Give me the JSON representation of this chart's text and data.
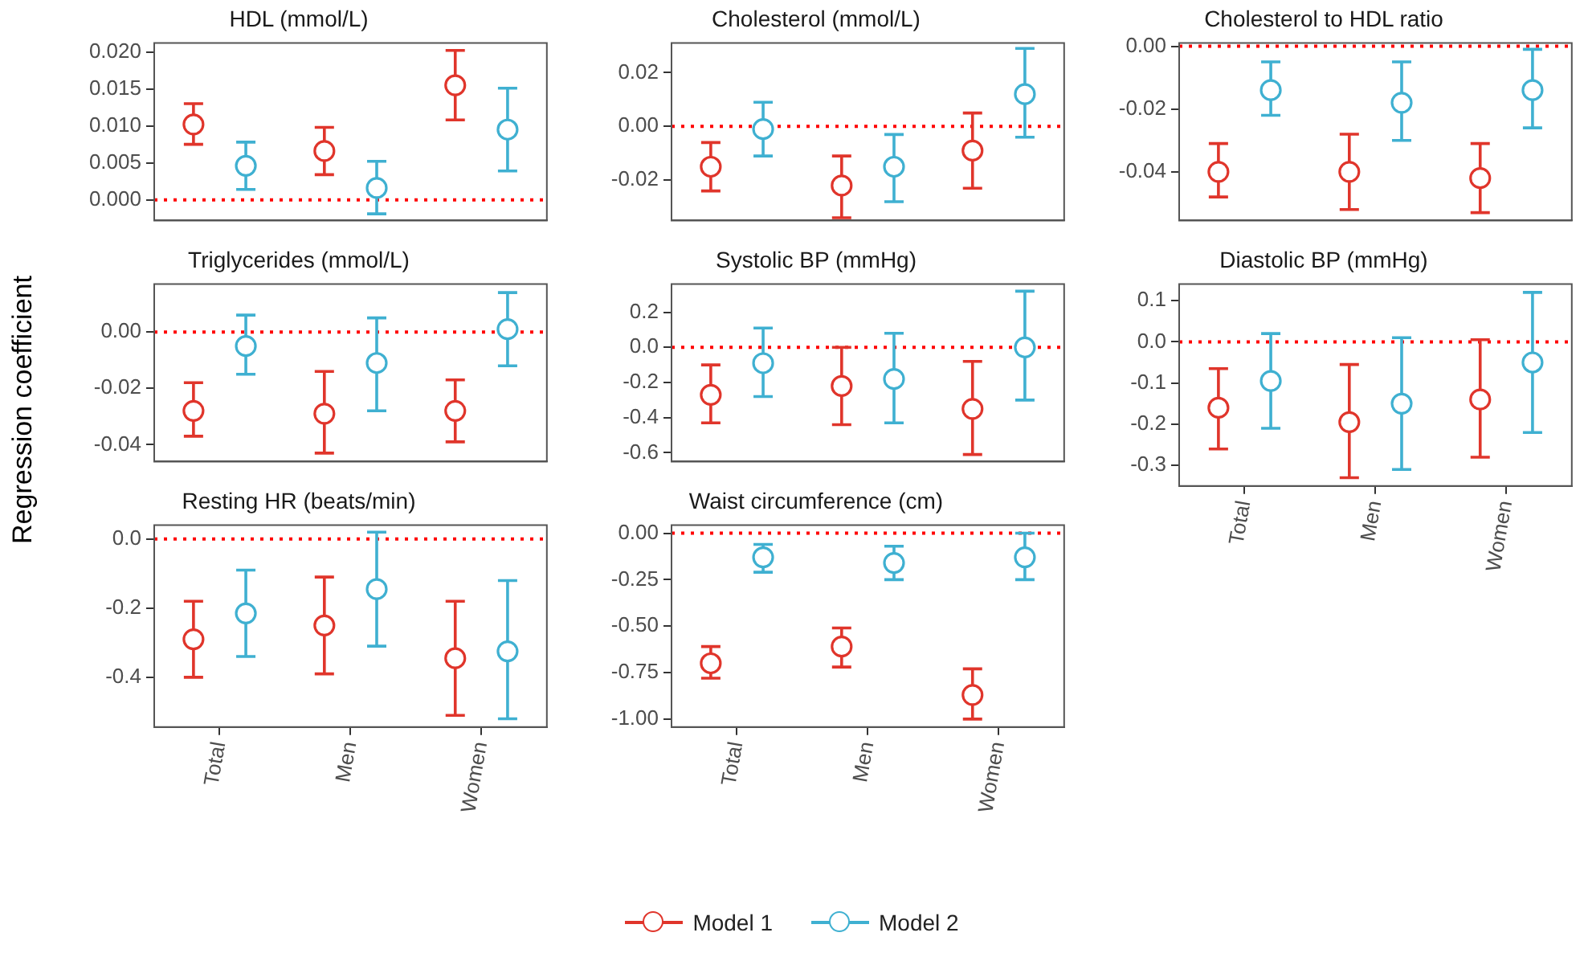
{
  "chart_data": [
    {
      "type": "scatter",
      "title": "HDL (mmol/L)",
      "categories": [
        null,
        null,
        null
      ],
      "marker": "circle",
      "legend": "bottom",
      "tick_labels": "y",
      "ylim": [
        -0.0028,
        0.0212
      ],
      "yticks": [
        {
          "value": 0,
          "label": "0.000"
        },
        {
          "value": 0.005,
          "label": "0.005"
        },
        {
          "value": 0.01,
          "label": "0.010"
        },
        {
          "value": 0.015,
          "label": "0.015"
        },
        {
          "value": 0.02,
          "label": "0.020"
        }
      ],
      "ref_lines": [
        {
          "axis": "y",
          "value": 0,
          "color": "#ff0000",
          "line_style": "dotted"
        }
      ],
      "series": [
        {
          "name": "Model 1",
          "color": "#e0352b",
          "values": [
            0.0102,
            0.0066,
            0.0155
          ],
          "errors": [
            [
              0.0075,
              0.013
            ],
            [
              0.0034,
              0.0098
            ],
            [
              0.0108,
              0.0202
            ]
          ]
        },
        {
          "name": "Model 2",
          "color": "#3fb0d1",
          "values": [
            0.0046,
            0.0016,
            0.0095
          ],
          "errors": [
            [
              0.0014,
              0.0078
            ],
            [
              -0.0019,
              0.0052
            ],
            [
              0.0039,
              0.0151
            ]
          ]
        }
      ]
    },
    {
      "type": "scatter",
      "title": "Cholesterol (mmol/L)",
      "categories": [
        null,
        null,
        null
      ],
      "marker": "circle",
      "tick_labels": "y",
      "ylim": [
        -0.035,
        0.031
      ],
      "yticks": [
        {
          "value": -0.02,
          "label": "-0.02"
        },
        {
          "value": 0,
          "label": "0.00"
        },
        {
          "value": 0.02,
          "label": "0.02"
        }
      ],
      "ref_lines": [
        {
          "axis": "y",
          "value": 0,
          "color": "#ff0000",
          "line_style": "dotted"
        }
      ],
      "series": [
        {
          "color": "#e0352b",
          "values": [
            -0.015,
            -0.022,
            -0.009
          ],
          "errors": [
            [
              -0.024,
              -0.006
            ],
            [
              -0.034,
              -0.011
            ],
            [
              -0.023,
              0.005
            ]
          ]
        },
        {
          "color": "#3fb0d1",
          "values": [
            -0.001,
            -0.015,
            0.012
          ],
          "errors": [
            [
              -0.011,
              0.009
            ],
            [
              -0.028,
              -0.003
            ],
            [
              -0.004,
              0.029
            ]
          ]
        }
      ]
    },
    {
      "type": "scatter",
      "title": "Cholesterol to HDL ratio",
      "categories": [
        null,
        null,
        null
      ],
      "marker": "circle",
      "tick_labels": "y",
      "ylim": [
        -0.0555,
        0.001
      ],
      "yticks": [
        {
          "value": -0.04,
          "label": "-0.04"
        },
        {
          "value": -0.02,
          "label": "-0.02"
        },
        {
          "value": 0,
          "label": "0.00"
        }
      ],
      "ref_lines": [
        {
          "axis": "y",
          "value": 0,
          "color": "#ff0000",
          "line_style": "dotted"
        }
      ],
      "series": [
        {
          "color": "#e0352b",
          "values": [
            -0.04,
            -0.04,
            -0.042
          ],
          "errors": [
            [
              -0.048,
              -0.031
            ],
            [
              -0.052,
              -0.028
            ],
            [
              -0.053,
              -0.031
            ]
          ]
        },
        {
          "color": "#3fb0d1",
          "values": [
            -0.014,
            -0.018,
            -0.014
          ],
          "errors": [
            [
              -0.022,
              -0.005
            ],
            [
              -0.03,
              -0.005
            ],
            [
              -0.026,
              -0.001
            ]
          ]
        }
      ]
    },
    {
      "type": "scatter",
      "title": "Triglycerides (mmol/L)",
      "ylabel": "Regression coefficient",
      "categories": [
        null,
        null,
        null
      ],
      "marker": "circle",
      "tick_labels": "y",
      "ylim": [
        -0.046,
        0.017
      ],
      "yticks": [
        {
          "value": -0.04,
          "label": "-0.04"
        },
        {
          "value": -0.02,
          "label": "-0.02"
        },
        {
          "value": 0,
          "label": "0.00"
        }
      ],
      "ref_lines": [
        {
          "axis": "y",
          "value": 0,
          "color": "#ff0000",
          "line_style": "dotted"
        }
      ],
      "series": [
        {
          "color": "#e0352b",
          "values": [
            -0.028,
            -0.029,
            -0.028
          ],
          "errors": [
            [
              -0.037,
              -0.018
            ],
            [
              -0.043,
              -0.014
            ],
            [
              -0.039,
              -0.017
            ]
          ]
        },
        {
          "color": "#3fb0d1",
          "values": [
            -0.005,
            -0.011,
            0.001
          ],
          "errors": [
            [
              -0.015,
              0.006
            ],
            [
              -0.028,
              0.005
            ],
            [
              -0.012,
              0.014
            ]
          ]
        }
      ]
    },
    {
      "type": "scatter",
      "title": "Systolic BP (mmHg)",
      "categories": [
        null,
        null,
        null
      ],
      "marker": "circle",
      "tick_labels": "y",
      "ylim": [
        -0.65,
        0.36
      ],
      "yticks": [
        {
          "value": -0.6,
          "label": "-0.6"
        },
        {
          "value": -0.4,
          "label": "-0.4"
        },
        {
          "value": -0.2,
          "label": "-0.2"
        },
        {
          "value": 0,
          "label": "0.0"
        },
        {
          "value": 0.2,
          "label": "0.2"
        }
      ],
      "ref_lines": [
        {
          "axis": "y",
          "value": 0,
          "color": "#ff0000",
          "line_style": "dotted"
        }
      ],
      "series": [
        {
          "color": "#e0352b",
          "values": [
            -0.27,
            -0.22,
            -0.35
          ],
          "errors": [
            [
              -0.43,
              -0.1
            ],
            [
              -0.44,
              0
            ],
            [
              -0.61,
              -0.08
            ]
          ]
        },
        {
          "color": "#3fb0d1",
          "values": [
            -0.09,
            -0.18,
            0
          ],
          "errors": [
            [
              -0.28,
              0.11
            ],
            [
              -0.43,
              0.08
            ],
            [
              -0.3,
              0.32
            ]
          ]
        }
      ]
    },
    {
      "type": "scatter",
      "title": "Diastolic BP (mmHg)",
      "categories": [
        "Total",
        "Men",
        "Women"
      ],
      "marker": "circle",
      "ylim": [
        -0.35,
        0.14
      ],
      "yticks": [
        {
          "value": -0.3,
          "label": "-0.3"
        },
        {
          "value": -0.2,
          "label": "-0.2"
        },
        {
          "value": -0.1,
          "label": "-0.1"
        },
        {
          "value": 0,
          "label": "0.0"
        },
        {
          "value": 0.1,
          "label": "0.1"
        }
      ],
      "ref_lines": [
        {
          "axis": "y",
          "value": 0,
          "color": "#ff0000",
          "line_style": "dotted"
        }
      ],
      "series": [
        {
          "color": "#e0352b",
          "values": [
            -0.16,
            -0.195,
            -0.14
          ],
          "errors": [
            [
              -0.26,
              -0.065
            ],
            [
              -0.33,
              -0.055
            ],
            [
              -0.28,
              0.005
            ]
          ]
        },
        {
          "color": "#3fb0d1",
          "values": [
            -0.095,
            -0.15,
            -0.05
          ],
          "errors": [
            [
              -0.21,
              0.02
            ],
            [
              -0.31,
              0.01
            ],
            [
              -0.22,
              0.12
            ]
          ]
        }
      ]
    },
    {
      "type": "scatter",
      "title": "Resting HR (beats/min)",
      "categories": [
        "Total",
        "Men",
        "Women"
      ],
      "marker": "circle",
      "ylim": [
        -0.544,
        0.04
      ],
      "yticks": [
        {
          "value": -0.4,
          "label": "-0.4"
        },
        {
          "value": -0.2,
          "label": "-0.2"
        },
        {
          "value": 0,
          "label": "0.0"
        }
      ],
      "ref_lines": [
        {
          "axis": "y",
          "value": 0,
          "color": "#ff0000",
          "line_style": "dotted"
        }
      ],
      "series": [
        {
          "color": "#e0352b",
          "values": [
            -0.29,
            -0.25,
            -0.345
          ],
          "errors": [
            [
              -0.4,
              -0.18
            ],
            [
              -0.39,
              -0.11
            ],
            [
              -0.51,
              -0.18
            ]
          ]
        },
        {
          "color": "#3fb0d1",
          "values": [
            -0.215,
            -0.145,
            -0.325
          ],
          "errors": [
            [
              -0.34,
              -0.09
            ],
            [
              -0.31,
              0.02
            ],
            [
              -0.52,
              -0.12
            ]
          ]
        }
      ]
    },
    {
      "type": "scatter",
      "title": "Waist circumference (cm)",
      "categories": [
        "Total",
        "Men",
        "Women"
      ],
      "marker": "circle",
      "ylim": [
        -1.043,
        0.043
      ],
      "yticks": [
        {
          "value": -1,
          "label": "-1.00"
        },
        {
          "value": -0.75,
          "label": "-0.75"
        },
        {
          "value": -0.5,
          "label": "-0.50"
        },
        {
          "value": -0.25,
          "label": "-0.25"
        },
        {
          "value": 0,
          "label": "0.00"
        }
      ],
      "ref_lines": [
        {
          "axis": "y",
          "value": 0,
          "color": "#ff0000",
          "line_style": "dotted"
        }
      ],
      "series": [
        {
          "color": "#e0352b",
          "values": [
            -0.7,
            -0.61,
            -0.87
          ],
          "errors": [
            [
              -0.78,
              -0.61
            ],
            [
              -0.72,
              -0.51
            ],
            [
              -1,
              -0.73
            ]
          ]
        },
        {
          "color": "#3fb0d1",
          "values": [
            -0.13,
            -0.16,
            -0.13
          ],
          "errors": [
            [
              -0.21,
              -0.06
            ],
            [
              -0.25,
              -0.07
            ],
            [
              -0.25,
              0
            ]
          ]
        }
      ]
    }
  ]
}
